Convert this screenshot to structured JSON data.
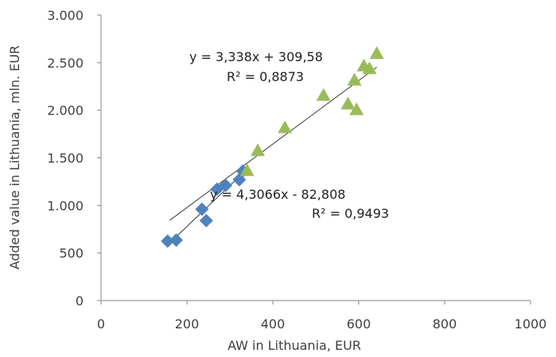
{
  "chart_data": {
    "type": "scatter",
    "title": "",
    "xlabel": "AW in Lithuania, EUR",
    "ylabel": "Added value in Lithuania, mln. EUR",
    "xlim": [
      0,
      1000
    ],
    "ylim": [
      0,
      3000
    ],
    "x_ticks": [
      0,
      200,
      400,
      600,
      800,
      1000
    ],
    "x_tick_labels": [
      "0",
      "200",
      "400",
      "600",
      "800",
      "1000"
    ],
    "y_ticks": [
      0,
      500,
      1000,
      1500,
      2000,
      2500,
      3000
    ],
    "y_tick_labels": [
      "0",
      "500",
      "1.000",
      "1.500",
      "2.000",
      "2.500",
      "3.000"
    ],
    "grid": false,
    "legend": "none",
    "series": [
      {
        "marker": "diamond",
        "color": "#4F81BD",
        "points": [
          {
            "x": 155,
            "y": 625
          },
          {
            "x": 175,
            "y": 635
          },
          {
            "x": 235,
            "y": 960
          },
          {
            "x": 245,
            "y": 840
          },
          {
            "x": 270,
            "y": 1170
          },
          {
            "x": 290,
            "y": 1210
          },
          {
            "x": 322,
            "y": 1270
          },
          {
            "x": 330,
            "y": 1360
          }
        ],
        "trendline": {
          "slope": 4.3066,
          "intercept": -82.808,
          "x_range": [
            155,
            330
          ],
          "equation": "y = 4,3066x - 82,808",
          "r2": "R² = 0,9493"
        }
      },
      {
        "marker": "triangle",
        "color": "#9BBB59",
        "points": [
          {
            "x": 340,
            "y": 1360
          },
          {
            "x": 365,
            "y": 1570
          },
          {
            "x": 428,
            "y": 1810
          },
          {
            "x": 518,
            "y": 2150
          },
          {
            "x": 575,
            "y": 2060
          },
          {
            "x": 590,
            "y": 2310
          },
          {
            "x": 595,
            "y": 2000
          },
          {
            "x": 612,
            "y": 2460
          },
          {
            "x": 625,
            "y": 2430
          },
          {
            "x": 642,
            "y": 2590
          }
        ],
        "trendline": {
          "slope": 3.338,
          "intercept": 309.58,
          "x_range": [
            160,
            642
          ],
          "equation": "y = 3,338x + 309,58",
          "r2": "R² = 0,8873"
        }
      }
    ]
  }
}
